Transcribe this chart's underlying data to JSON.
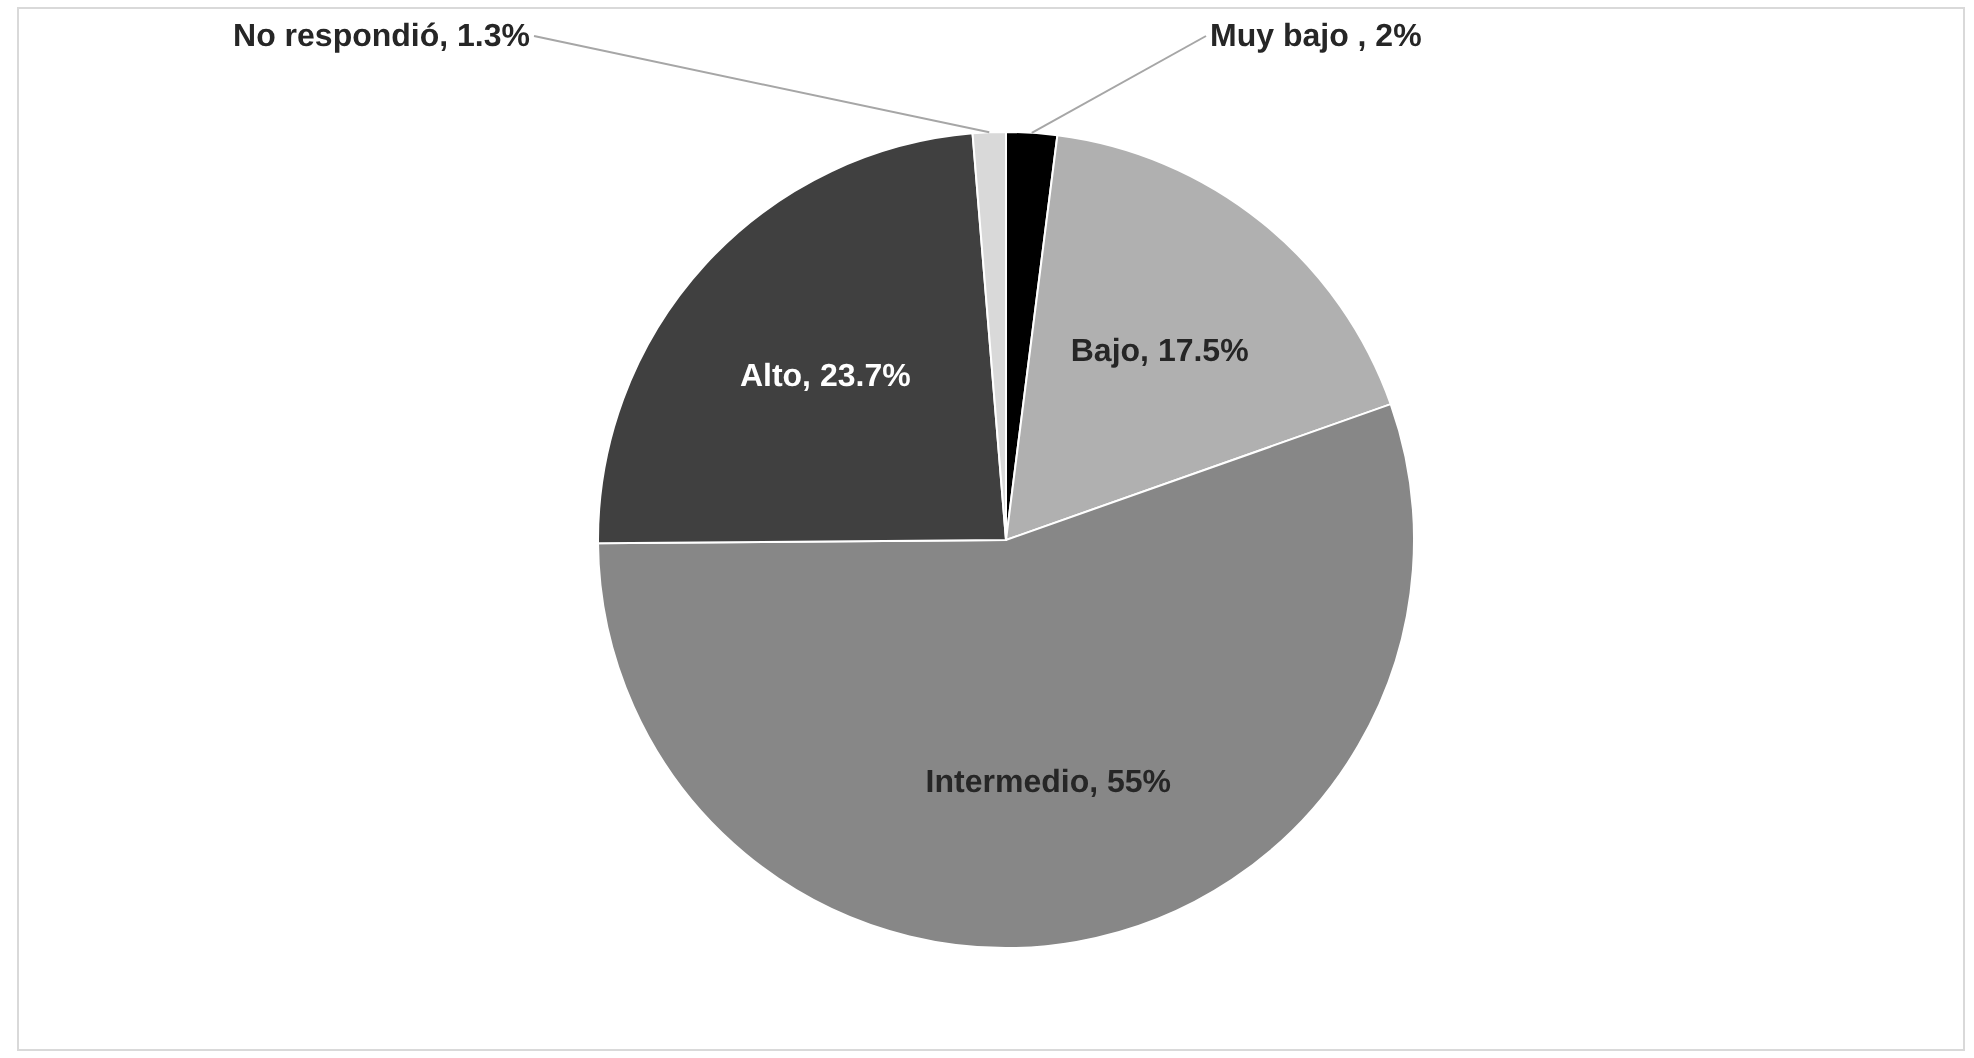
{
  "chart_data": {
    "type": "pie",
    "categories": [
      "Muy bajo ",
      "Bajo",
      "Intermedio",
      "Alto",
      "No respondió"
    ],
    "values": [
      2,
      17.5,
      55,
      23.7,
      1.3
    ],
    "value_labels": [
      "2%",
      "17.5%",
      "55%",
      "23.7%",
      "1.3%"
    ],
    "colors": [
      "#000000",
      "#b0b0b0",
      "#878787",
      "#404040",
      "#d9d9d9"
    ]
  }
}
